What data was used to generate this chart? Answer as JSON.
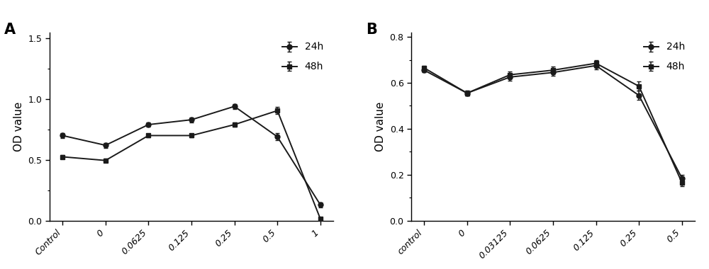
{
  "panel_A": {
    "label": "A",
    "x_labels": [
      "Control",
      "0",
      "0.0625",
      "0.125",
      "0.25",
      "0.5",
      "1"
    ],
    "series": [
      {
        "name": "24h",
        "y": [
          0.7,
          0.62,
          0.79,
          0.83,
          0.94,
          0.69,
          0.13
        ],
        "yerr": [
          0.02,
          0.02,
          0.02,
          0.02,
          0.02,
          0.03,
          0.02
        ],
        "marker": "o",
        "color": "#1a1a1a"
      },
      {
        "name": "48h",
        "y": [
          0.525,
          0.495,
          0.7,
          0.7,
          0.79,
          0.905,
          0.015
        ],
        "yerr": [
          0.015,
          0.015,
          0.015,
          0.015,
          0.015,
          0.03,
          0.01
        ],
        "marker": "s",
        "color": "#1a1a1a"
      }
    ],
    "ylabel": "OD value",
    "ylim": [
      0.0,
      1.55
    ],
    "yticks": [
      0.0,
      0.5,
      1.0,
      1.5
    ]
  },
  "panel_B": {
    "label": "B",
    "x_labels": [
      "control",
      "0",
      "0.03125",
      "0.0625",
      "0.125",
      "0.25",
      "0.5"
    ],
    "series": [
      {
        "name": "24h",
        "y": [
          0.655,
          0.555,
          0.625,
          0.645,
          0.675,
          0.545,
          0.185
        ],
        "yerr": [
          0.01,
          0.01,
          0.015,
          0.015,
          0.015,
          0.02,
          0.015
        ],
        "marker": "o",
        "color": "#1a1a1a"
      },
      {
        "name": "48h",
        "y": [
          0.665,
          0.555,
          0.635,
          0.655,
          0.685,
          0.585,
          0.165
        ],
        "yerr": [
          0.01,
          0.01,
          0.015,
          0.015,
          0.015,
          0.02,
          0.015
        ],
        "marker": "s",
        "color": "#1a1a1a"
      }
    ],
    "ylabel": "OD value",
    "ylim": [
      0.0,
      0.82
    ],
    "yticks": [
      0.0,
      0.2,
      0.4,
      0.6,
      0.8
    ]
  },
  "line_color": "#1a1a1a",
  "marker_size": 5,
  "line_width": 1.4,
  "capsize": 2.5,
  "elinewidth": 1.1,
  "legend_fontsize": 10,
  "axis_label_fontsize": 11,
  "tick_fontsize": 9,
  "panel_label_fontsize": 15,
  "background_color": "#ffffff"
}
